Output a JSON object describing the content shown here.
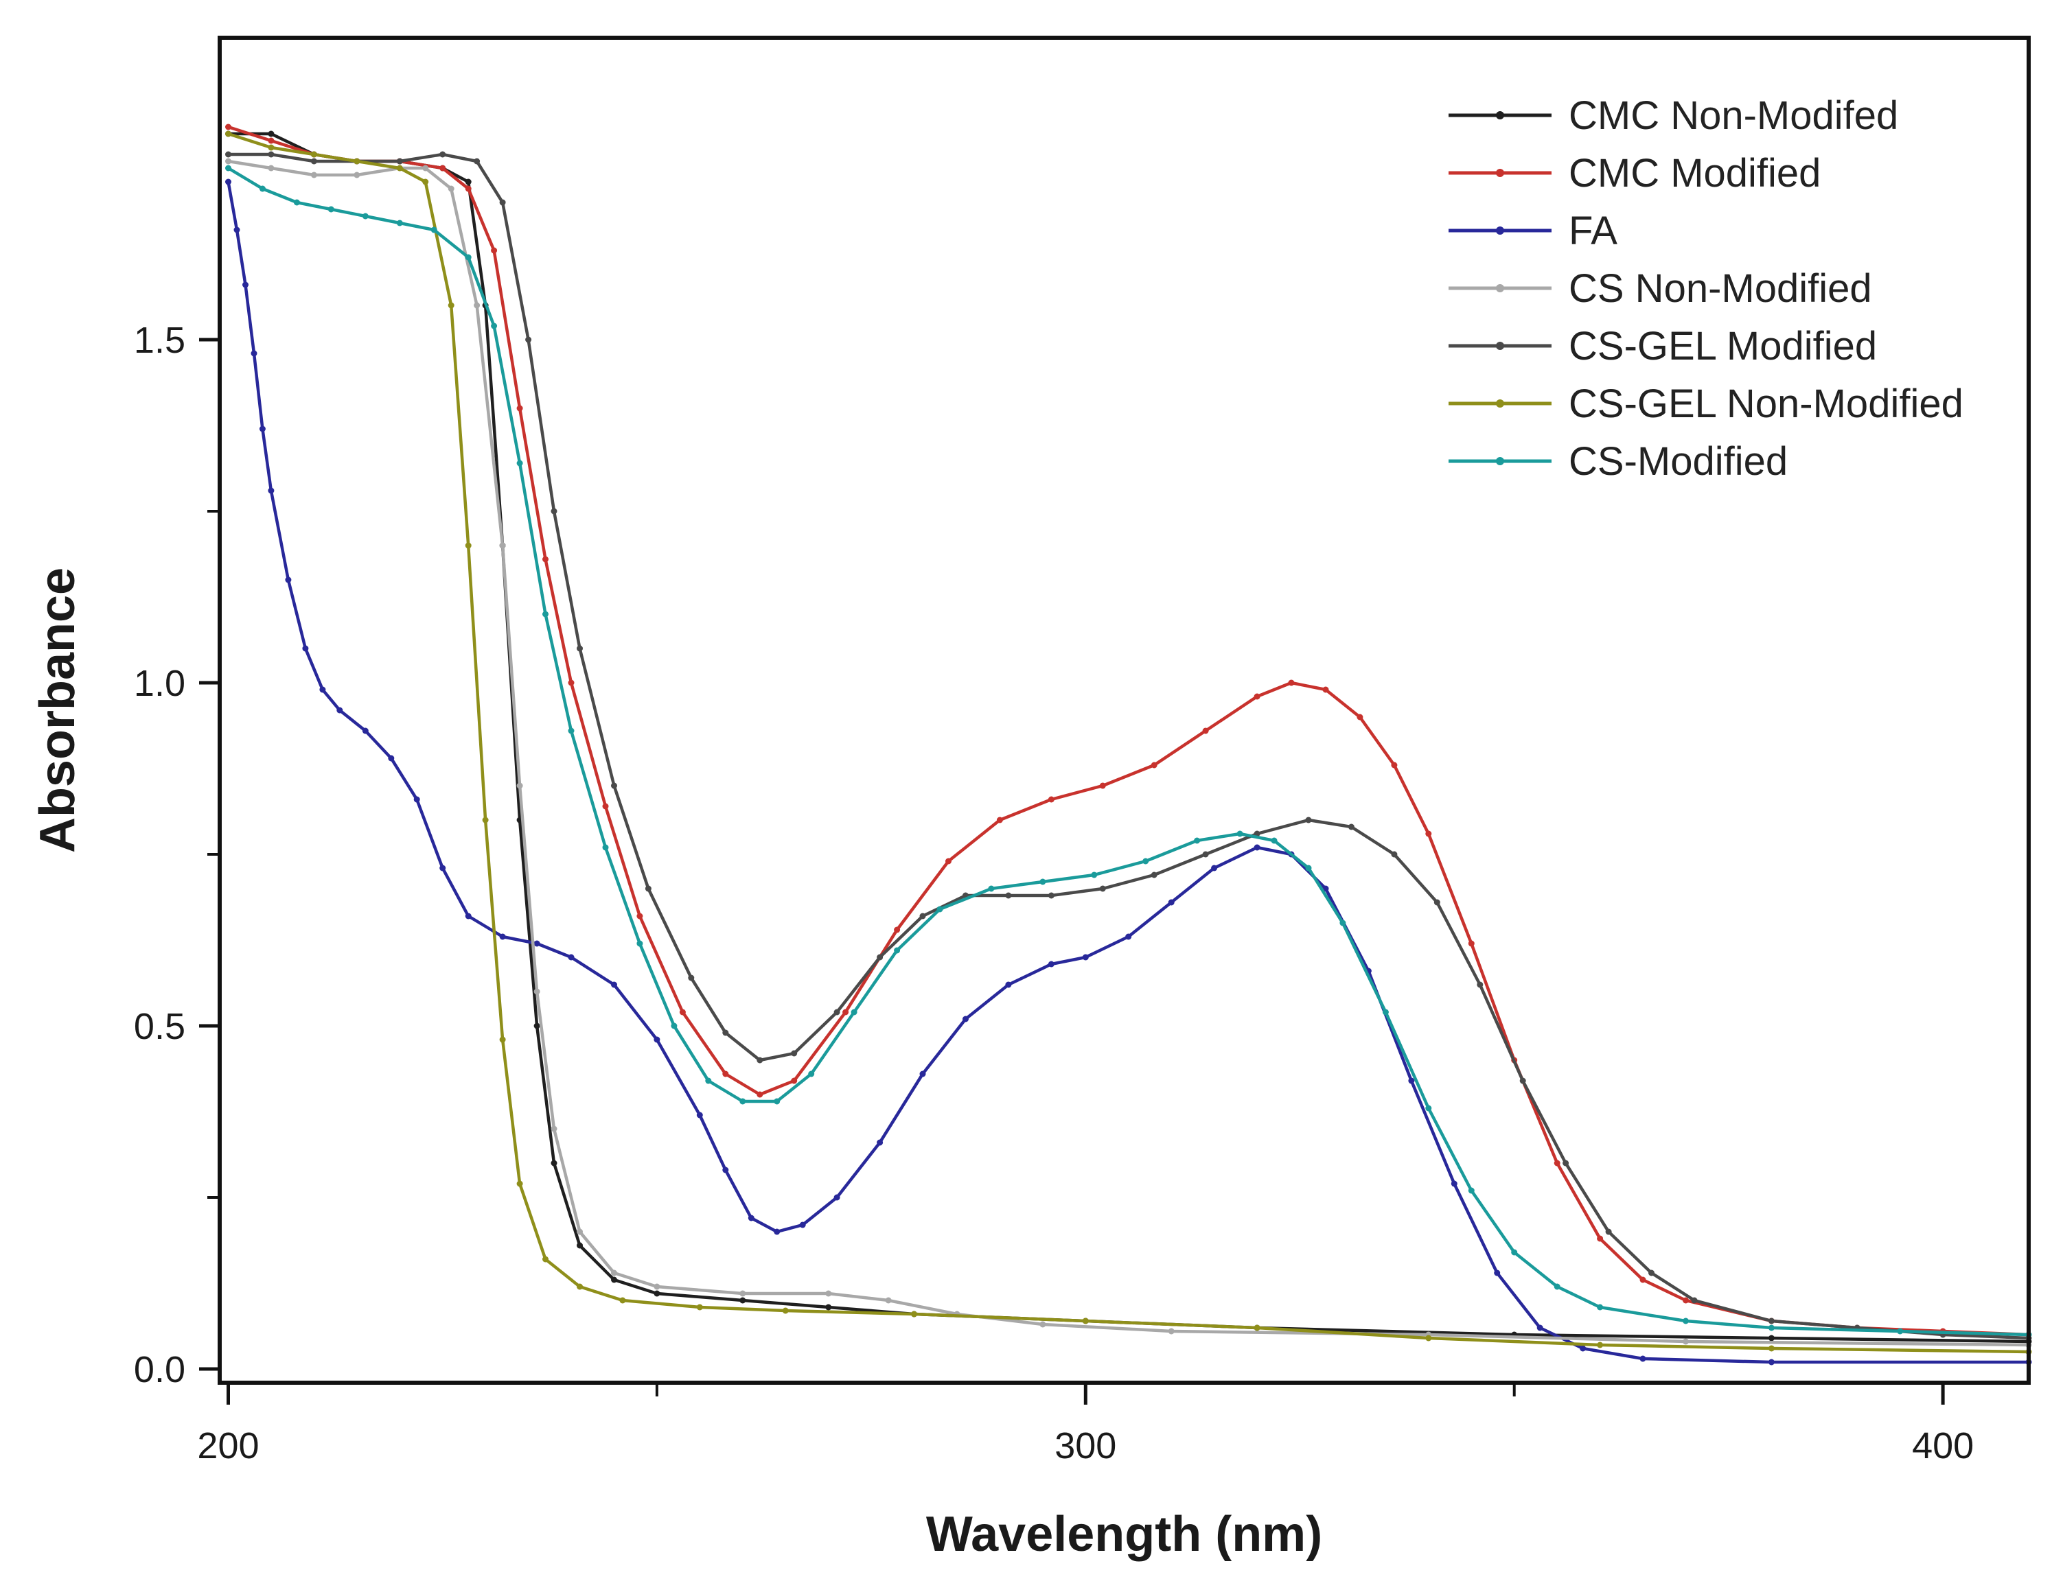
{
  "chart_data": {
    "type": "line",
    "title": "",
    "xlabel": "Wavelength (nm)",
    "ylabel": "Absorbance",
    "xlim": [
      199,
      410
    ],
    "ylim": [
      -0.02,
      1.94
    ],
    "x_major_ticks": [
      200,
      300,
      400
    ],
    "x_minor_ticks": [
      250,
      350
    ],
    "x_tick_labels": [
      "200",
      "300",
      "400"
    ],
    "y_major_ticks": [
      0.0,
      0.5,
      1.0,
      1.5
    ],
    "y_minor_ticks": [
      0.25,
      0.75,
      1.25
    ],
    "y_tick_labels": [
      "0.0",
      "0.5",
      "1.0",
      "1.5"
    ],
    "grid": false,
    "legend_position": "top-right",
    "series": [
      {
        "name": "CMC Non-Modifed",
        "color": "#1f1f1f",
        "points": [
          [
            200,
            1.8
          ],
          [
            205,
            1.8
          ],
          [
            210,
            1.77
          ],
          [
            215,
            1.76
          ],
          [
            220,
            1.76
          ],
          [
            225,
            1.75
          ],
          [
            228,
            1.73
          ],
          [
            230,
            1.55
          ],
          [
            232,
            1.2
          ],
          [
            234,
            0.8
          ],
          [
            236,
            0.5
          ],
          [
            238,
            0.3
          ],
          [
            241,
            0.18
          ],
          [
            245,
            0.13
          ],
          [
            250,
            0.11
          ],
          [
            260,
            0.1
          ],
          [
            270,
            0.09
          ],
          [
            280,
            0.08
          ],
          [
            300,
            0.07
          ],
          [
            320,
            0.06
          ],
          [
            350,
            0.05
          ],
          [
            380,
            0.045
          ],
          [
            410,
            0.04
          ]
        ]
      },
      {
        "name": "CMC Modified",
        "color": "#c8322d",
        "points": [
          [
            200,
            1.81
          ],
          [
            205,
            1.79
          ],
          [
            210,
            1.77
          ],
          [
            215,
            1.76
          ],
          [
            220,
            1.76
          ],
          [
            225,
            1.75
          ],
          [
            228,
            1.72
          ],
          [
            231,
            1.63
          ],
          [
            234,
            1.4
          ],
          [
            237,
            1.18
          ],
          [
            240,
            1.0
          ],
          [
            244,
            0.82
          ],
          [
            248,
            0.66
          ],
          [
            253,
            0.52
          ],
          [
            258,
            0.43
          ],
          [
            262,
            0.4
          ],
          [
            266,
            0.42
          ],
          [
            272,
            0.52
          ],
          [
            278,
            0.64
          ],
          [
            284,
            0.74
          ],
          [
            290,
            0.8
          ],
          [
            296,
            0.83
          ],
          [
            302,
            0.85
          ],
          [
            308,
            0.88
          ],
          [
            314,
            0.93
          ],
          [
            320,
            0.98
          ],
          [
            324,
            1.0
          ],
          [
            328,
            0.99
          ],
          [
            332,
            0.95
          ],
          [
            336,
            0.88
          ],
          [
            340,
            0.78
          ],
          [
            345,
            0.62
          ],
          [
            350,
            0.45
          ],
          [
            355,
            0.3
          ],
          [
            360,
            0.19
          ],
          [
            365,
            0.13
          ],
          [
            370,
            0.1
          ],
          [
            380,
            0.07
          ],
          [
            390,
            0.06
          ],
          [
            400,
            0.055
          ],
          [
            410,
            0.05
          ]
        ]
      },
      {
        "name": "FA",
        "color": "#28289a",
        "points": [
          [
            200,
            1.73
          ],
          [
            201,
            1.66
          ],
          [
            202,
            1.58
          ],
          [
            203,
            1.48
          ],
          [
            204,
            1.37
          ],
          [
            205,
            1.28
          ],
          [
            207,
            1.15
          ],
          [
            209,
            1.05
          ],
          [
            211,
            0.99
          ],
          [
            213,
            0.96
          ],
          [
            216,
            0.93
          ],
          [
            219,
            0.89
          ],
          [
            222,
            0.83
          ],
          [
            225,
            0.73
          ],
          [
            228,
            0.66
          ],
          [
            232,
            0.63
          ],
          [
            236,
            0.62
          ],
          [
            240,
            0.6
          ],
          [
            245,
            0.56
          ],
          [
            250,
            0.48
          ],
          [
            255,
            0.37
          ],
          [
            258,
            0.29
          ],
          [
            261,
            0.22
          ],
          [
            264,
            0.2
          ],
          [
            267,
            0.21
          ],
          [
            271,
            0.25
          ],
          [
            276,
            0.33
          ],
          [
            281,
            0.43
          ],
          [
            286,
            0.51
          ],
          [
            291,
            0.56
          ],
          [
            296,
            0.59
          ],
          [
            300,
            0.6
          ],
          [
            305,
            0.63
          ],
          [
            310,
            0.68
          ],
          [
            315,
            0.73
          ],
          [
            320,
            0.76
          ],
          [
            324,
            0.75
          ],
          [
            328,
            0.7
          ],
          [
            333,
            0.58
          ],
          [
            338,
            0.42
          ],
          [
            343,
            0.27
          ],
          [
            348,
            0.14
          ],
          [
            353,
            0.06
          ],
          [
            358,
            0.03
          ],
          [
            365,
            0.015
          ],
          [
            380,
            0.01
          ],
          [
            410,
            0.01
          ]
        ]
      },
      {
        "name": "CS Non-Modified",
        "color": "#a8a8a8",
        "points": [
          [
            200,
            1.76
          ],
          [
            205,
            1.75
          ],
          [
            210,
            1.74
          ],
          [
            215,
            1.74
          ],
          [
            220,
            1.75
          ],
          [
            223,
            1.75
          ],
          [
            226,
            1.72
          ],
          [
            229,
            1.55
          ],
          [
            232,
            1.2
          ],
          [
            234,
            0.85
          ],
          [
            236,
            0.55
          ],
          [
            238,
            0.35
          ],
          [
            241,
            0.2
          ],
          [
            245,
            0.14
          ],
          [
            250,
            0.12
          ],
          [
            260,
            0.11
          ],
          [
            270,
            0.11
          ],
          [
            277,
            0.1
          ],
          [
            285,
            0.08
          ],
          [
            295,
            0.065
          ],
          [
            310,
            0.055
          ],
          [
            340,
            0.05
          ],
          [
            370,
            0.04
          ],
          [
            410,
            0.035
          ]
        ]
      },
      {
        "name": "CS-GEL Modified",
        "color": "#4a4a4a",
        "points": [
          [
            200,
            1.77
          ],
          [
            205,
            1.77
          ],
          [
            210,
            1.76
          ],
          [
            215,
            1.76
          ],
          [
            220,
            1.76
          ],
          [
            225,
            1.77
          ],
          [
            229,
            1.76
          ],
          [
            232,
            1.7
          ],
          [
            235,
            1.5
          ],
          [
            238,
            1.25
          ],
          [
            241,
            1.05
          ],
          [
            245,
            0.85
          ],
          [
            249,
            0.7
          ],
          [
            254,
            0.57
          ],
          [
            258,
            0.49
          ],
          [
            262,
            0.45
          ],
          [
            266,
            0.46
          ],
          [
            271,
            0.52
          ],
          [
            276,
            0.6
          ],
          [
            281,
            0.66
          ],
          [
            286,
            0.69
          ],
          [
            291,
            0.69
          ],
          [
            296,
            0.69
          ],
          [
            302,
            0.7
          ],
          [
            308,
            0.72
          ],
          [
            314,
            0.75
          ],
          [
            320,
            0.78
          ],
          [
            326,
            0.8
          ],
          [
            331,
            0.79
          ],
          [
            336,
            0.75
          ],
          [
            341,
            0.68
          ],
          [
            346,
            0.56
          ],
          [
            351,
            0.42
          ],
          [
            356,
            0.3
          ],
          [
            361,
            0.2
          ],
          [
            366,
            0.14
          ],
          [
            371,
            0.1
          ],
          [
            380,
            0.07
          ],
          [
            390,
            0.06
          ],
          [
            400,
            0.05
          ],
          [
            410,
            0.045
          ]
        ]
      },
      {
        "name": "CS-GEL Non-Modified",
        "color": "#8f8f1a",
        "points": [
          [
            200,
            1.8
          ],
          [
            205,
            1.78
          ],
          [
            210,
            1.77
          ],
          [
            215,
            1.76
          ],
          [
            220,
            1.75
          ],
          [
            223,
            1.73
          ],
          [
            226,
            1.55
          ],
          [
            228,
            1.2
          ],
          [
            230,
            0.8
          ],
          [
            232,
            0.48
          ],
          [
            234,
            0.27
          ],
          [
            237,
            0.16
          ],
          [
            241,
            0.12
          ],
          [
            246,
            0.1
          ],
          [
            255,
            0.09
          ],
          [
            265,
            0.085
          ],
          [
            280,
            0.08
          ],
          [
            300,
            0.07
          ],
          [
            320,
            0.06
          ],
          [
            340,
            0.045
          ],
          [
            360,
            0.035
          ],
          [
            380,
            0.03
          ],
          [
            410,
            0.025
          ]
        ]
      },
      {
        "name": "CS-Modified",
        "color": "#1a9b9b",
        "points": [
          [
            200,
            1.75
          ],
          [
            204,
            1.72
          ],
          [
            208,
            1.7
          ],
          [
            212,
            1.69
          ],
          [
            216,
            1.68
          ],
          [
            220,
            1.67
          ],
          [
            224,
            1.66
          ],
          [
            228,
            1.62
          ],
          [
            231,
            1.52
          ],
          [
            234,
            1.32
          ],
          [
            237,
            1.1
          ],
          [
            240,
            0.93
          ],
          [
            244,
            0.76
          ],
          [
            248,
            0.62
          ],
          [
            252,
            0.5
          ],
          [
            256,
            0.42
          ],
          [
            260,
            0.39
          ],
          [
            264,
            0.39
          ],
          [
            268,
            0.43
          ],
          [
            273,
            0.52
          ],
          [
            278,
            0.61
          ],
          [
            283,
            0.67
          ],
          [
            289,
            0.7
          ],
          [
            295,
            0.71
          ],
          [
            301,
            0.72
          ],
          [
            307,
            0.74
          ],
          [
            313,
            0.77
          ],
          [
            318,
            0.78
          ],
          [
            322,
            0.77
          ],
          [
            326,
            0.73
          ],
          [
            330,
            0.65
          ],
          [
            335,
            0.52
          ],
          [
            340,
            0.38
          ],
          [
            345,
            0.26
          ],
          [
            350,
            0.17
          ],
          [
            355,
            0.12
          ],
          [
            360,
            0.09
          ],
          [
            370,
            0.07
          ],
          [
            380,
            0.06
          ],
          [
            395,
            0.055
          ],
          [
            410,
            0.05
          ]
        ]
      }
    ]
  }
}
